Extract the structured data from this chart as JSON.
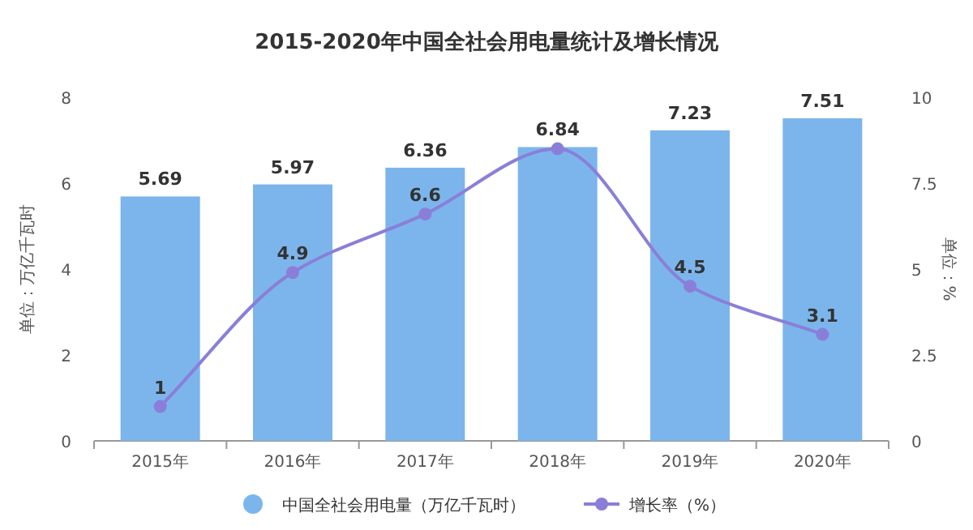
{
  "chart_data": {
    "type": "bar",
    "title": "2015-2020年中国全社会用电量统计及增长情况",
    "categories": [
      "2015年",
      "2016年",
      "2017年",
      "2018年",
      "2019年",
      "2020年"
    ],
    "series": [
      {
        "name": "中国全社会用电量（万亿千瓦时）",
        "color": "#7cb5ec",
        "values": [
          5.69,
          5.97,
          6.36,
          6.84,
          7.23,
          7.51
        ]
      },
      {
        "type": "line",
        "name": "增长率（%）",
        "color": "#8a7fd8",
        "axis": "y2",
        "marker": "circle",
        "values": [
          1,
          4.9,
          6.6,
          8.5,
          4.5,
          3.1
        ],
        "value_labels": [
          "1",
          "4.9",
          "6.6",
          null,
          "4.5",
          "3.1"
        ]
      }
    ],
    "ylabel": "单位：万亿千瓦时",
    "y2label": "单位：%",
    "ylim": [
      0,
      8
    ],
    "yticks": [
      0,
      2,
      4,
      6,
      8
    ],
    "y2lim": [
      0,
      10
    ],
    "y2ticks": [
      0,
      2.5,
      5,
      7.5,
      10
    ],
    "data_labels": true,
    "legend": "bottom",
    "grid": false
  }
}
